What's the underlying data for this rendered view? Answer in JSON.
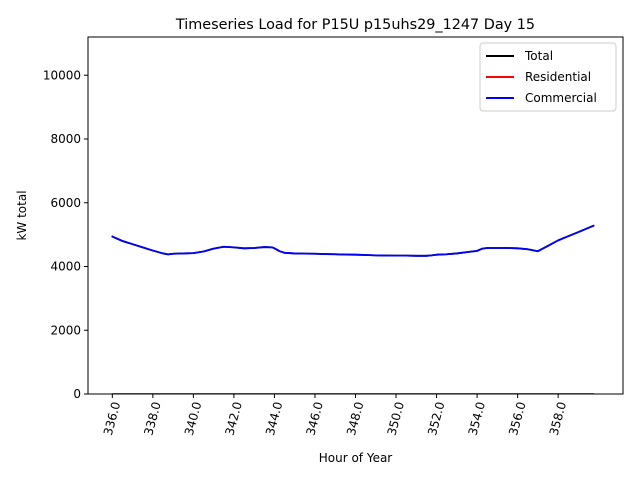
{
  "chart_data": {
    "type": "line",
    "title": "Timeseries Load for P15U p15uhs29_1247  Day 15",
    "xlabel": "Hour of Year",
    "ylabel": "kW total",
    "xlim": [
      334.8,
      361.2
    ],
    "ylim": [
      0,
      11200
    ],
    "xticks": [
      336,
      338,
      340,
      342,
      344,
      346,
      348,
      350,
      352,
      354,
      356,
      358
    ],
    "xtick_labels": [
      "336.0",
      "338.0",
      "340.0",
      "342.0",
      "344.0",
      "346.0",
      "348.0",
      "350.0",
      "352.0",
      "354.0",
      "356.0",
      "358.0"
    ],
    "yticks": [
      0,
      2000,
      4000,
      6000,
      8000,
      10000
    ],
    "ytick_labels": [
      "0",
      "2000",
      "4000",
      "6000",
      "8000",
      "10000"
    ],
    "legend_position": "top-right",
    "series": [
      {
        "name": "Total",
        "color": "#000000",
        "x": [
          336.0,
          336.5,
          337.0,
          337.5,
          338.0,
          338.5,
          338.75,
          339.0,
          339.5,
          340.0,
          340.5,
          341.0,
          341.5,
          342.0,
          342.5,
          343.0,
          343.5,
          343.9,
          344.0,
          344.25,
          344.5,
          345.0,
          345.5,
          346.0,
          346.5,
          347.0,
          347.5,
          348.0,
          348.5,
          349.0,
          349.5,
          350.0,
          350.5,
          351.0,
          351.5,
          351.75,
          352.0,
          352.5,
          353.0,
          353.5,
          354.0,
          354.25,
          354.5,
          355.0,
          355.5,
          356.0,
          356.5,
          357.0,
          357.5,
          358.0,
          358.5,
          359.0,
          359.75
        ],
        "y": [
          4940,
          4800,
          4700,
          4600,
          4500,
          4410,
          4380,
          4400,
          4410,
          4420,
          4470,
          4560,
          4620,
          4600,
          4570,
          4580,
          4610,
          4600,
          4570,
          4480,
          4430,
          4410,
          4405,
          4400,
          4390,
          4385,
          4375,
          4370,
          4360,
          4350,
          4345,
          4340,
          4340,
          4335,
          4335,
          4350,
          4370,
          4385,
          4410,
          4450,
          4490,
          4560,
          4580,
          4580,
          4580,
          4570,
          4540,
          4480,
          4650,
          4820,
          4950,
          5080,
          5280
        ]
      },
      {
        "name": "Residential",
        "color": "#ff0000",
        "x": [
          336.0,
          340.0,
          344.0,
          348.0,
          352.0,
          356.0,
          359.75
        ],
        "y": [
          0,
          0,
          0,
          0,
          0,
          0,
          0
        ]
      },
      {
        "name": "Commercial",
        "color": "#0000ff",
        "x": [
          336.0,
          336.5,
          337.0,
          337.5,
          338.0,
          338.5,
          338.75,
          339.0,
          339.5,
          340.0,
          340.5,
          341.0,
          341.5,
          342.0,
          342.5,
          343.0,
          343.5,
          343.9,
          344.0,
          344.25,
          344.5,
          345.0,
          345.5,
          346.0,
          346.5,
          347.0,
          347.5,
          348.0,
          348.5,
          349.0,
          349.5,
          350.0,
          350.5,
          351.0,
          351.5,
          351.75,
          352.0,
          352.5,
          353.0,
          353.5,
          354.0,
          354.25,
          354.5,
          355.0,
          355.5,
          356.0,
          356.5,
          357.0,
          357.5,
          358.0,
          358.5,
          359.0,
          359.75
        ],
        "y": [
          4940,
          4800,
          4700,
          4600,
          4500,
          4410,
          4380,
          4400,
          4410,
          4420,
          4470,
          4560,
          4620,
          4600,
          4570,
          4580,
          4610,
          4600,
          4570,
          4480,
          4430,
          4410,
          4405,
          4400,
          4390,
          4385,
          4375,
          4370,
          4360,
          4350,
          4345,
          4340,
          4340,
          4335,
          4335,
          4350,
          4370,
          4385,
          4410,
          4450,
          4490,
          4560,
          4580,
          4580,
          4580,
          4570,
          4540,
          4480,
          4650,
          4820,
          4950,
          5080,
          5280
        ]
      }
    ]
  }
}
